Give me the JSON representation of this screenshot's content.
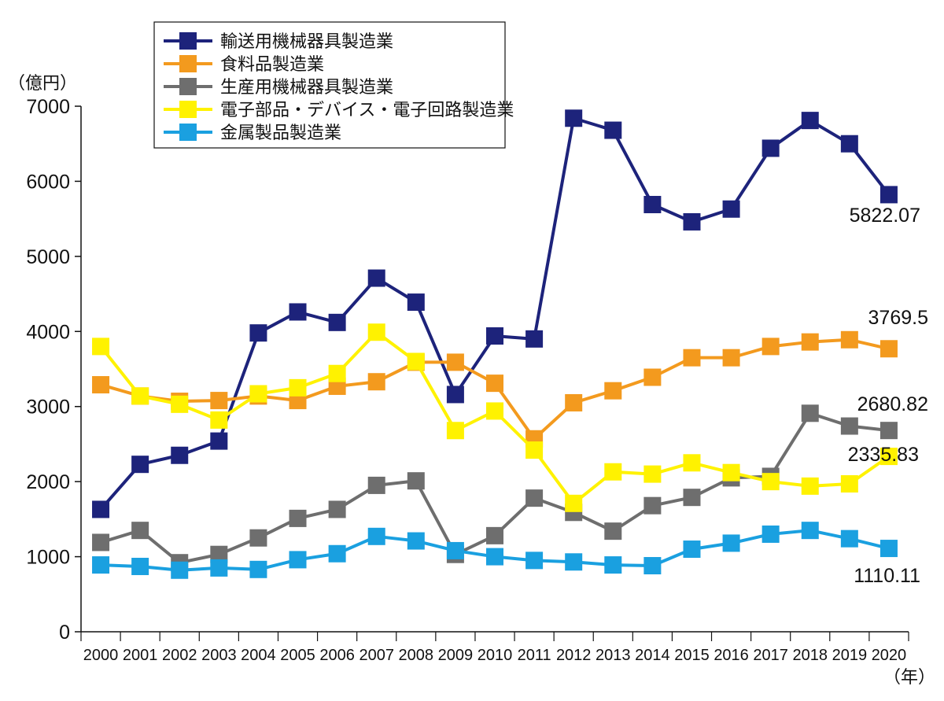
{
  "chart_data": {
    "type": "line",
    "title": "",
    "xlabel": "",
    "ylabel": "",
    "y_unit": "（億円）",
    "x_unit": "（年）",
    "ylim": [
      0,
      7000
    ],
    "yticks": [
      0,
      1000,
      2000,
      3000,
      4000,
      5000,
      6000,
      7000
    ],
    "categories": [
      "2000",
      "2001",
      "2002",
      "2003",
      "2004",
      "2005",
      "2006",
      "2007",
      "2008",
      "2009",
      "2010",
      "2011",
      "2012",
      "2013",
      "2014",
      "2015",
      "2016",
      "2017",
      "2018",
      "2019",
      "2020"
    ],
    "grid": false,
    "legend_position": "top-left",
    "series": [
      {
        "name": "輸送用機械器具製造業",
        "color": "#1d237b",
        "values": [
          1630,
          2230,
          2350,
          2540,
          3980,
          4260,
          4120,
          4710,
          4390,
          3160,
          3940,
          3900,
          6840,
          6680,
          5690,
          5460,
          5630,
          6440,
          6810,
          6500,
          5822.07
        ]
      },
      {
        "name": "食料品製造業",
        "color": "#f39a1e",
        "values": [
          3290,
          3140,
          3070,
          3080,
          3140,
          3080,
          3270,
          3330,
          3590,
          3590,
          3310,
          2570,
          3050,
          3210,
          3390,
          3650,
          3650,
          3800,
          3860,
          3890,
          3769.5
        ]
      },
      {
        "name": "生産用機械器具製造業",
        "color": "#6e6e6e",
        "values": [
          1190,
          1350,
          920,
          1030,
          1250,
          1510,
          1630,
          1950,
          2010,
          1030,
          1280,
          1780,
          1590,
          1340,
          1680,
          1790,
          2050,
          2070,
          2910,
          2740,
          2680.82
        ]
      },
      {
        "name": "電子部品・デバイス・電子回路製造業",
        "color": "#fff200",
        "values": [
          3800,
          3140,
          3030,
          2820,
          3170,
          3250,
          3440,
          3990,
          3600,
          2680,
          2940,
          2420,
          1710,
          2130,
          2100,
          2250,
          2120,
          2000,
          1940,
          1970,
          2335.83
        ]
      },
      {
        "name": "金属製品製造業",
        "color": "#1aa0e0",
        "values": [
          890,
          870,
          820,
          850,
          830,
          960,
          1040,
          1270,
          1210,
          1080,
          1000,
          950,
          930,
          890,
          880,
          1100,
          1180,
          1300,
          1350,
          1240,
          1110.11
        ]
      }
    ],
    "annotations": [
      "5822.07",
      "3769.5",
      "2680.82",
      "2335.83",
      "1110.11"
    ]
  }
}
